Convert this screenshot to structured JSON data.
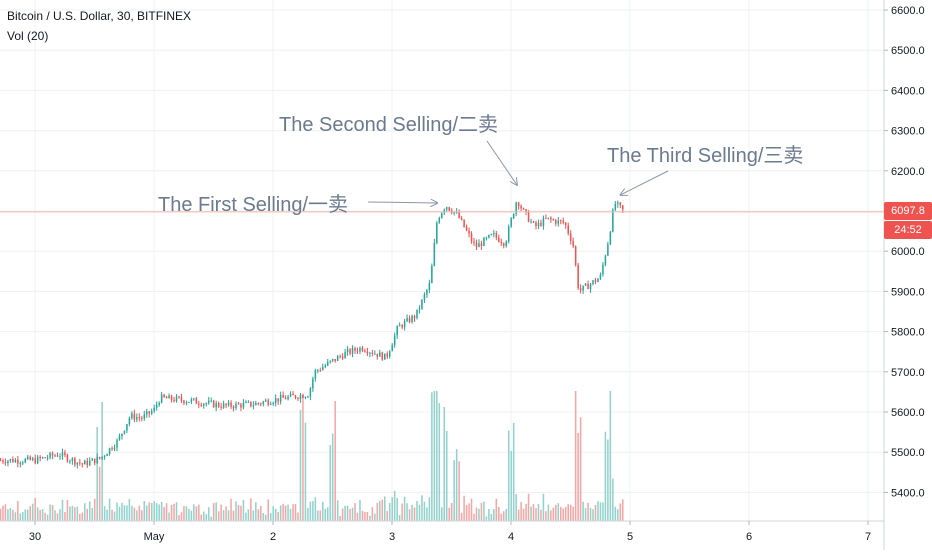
{
  "header": {
    "title": "Bitcoin / U.S. Dollar, 30, BITFINEX",
    "volume_label": "Vol (20)"
  },
  "price_scale": {
    "last_price": "6097.8",
    "countdown": "24:52"
  },
  "colors": {
    "up": "#26a69a",
    "down": "#ef5350",
    "volume_up": "#93d2cc",
    "volume_down": "#f4a6a4",
    "grid": "#eef0f3",
    "annotation_text": "#6b7a8f",
    "price_line": "#f5b7a8"
  },
  "chart_data": {
    "type": "candlestick",
    "symbol": "Bitcoin / U.S. Dollar",
    "interval": "30",
    "exchange": "BITFINEX",
    "indicator": "Vol (20)",
    "y_ticks": [
      "6600.0",
      "6500.0",
      "6400.0",
      "6300.0",
      "6200.0",
      "6100.0",
      "6000.0",
      "5900.0",
      "5800.0",
      "5700.0",
      "5600.0",
      "5500.0",
      "5400.0"
    ],
    "y_tick_values": [
      6600,
      6500,
      6400,
      6300,
      6200,
      6100,
      6000,
      5900,
      5800,
      5700,
      5600,
      5500,
      5400
    ],
    "ylim": [
      5340,
      6660
    ],
    "x_ticks": [
      {
        "label": "30",
        "day": 0
      },
      {
        "label": "May",
        "day": 1
      },
      {
        "label": "2",
        "day": 2
      },
      {
        "label": "3",
        "day": 3
      },
      {
        "label": "4",
        "day": 4
      },
      {
        "label": "5",
        "day": 5
      },
      {
        "label": "6",
        "day": 6
      },
      {
        "label": "7",
        "day": 7
      }
    ],
    "last_price": 6097.8,
    "series": [
      {
        "day": 0.0,
        "close": 5480
      },
      {
        "day": 0.2,
        "close": 5495
      },
      {
        "day": 0.4,
        "close": 5470
      },
      {
        "day": 0.55,
        "close": 5485
      },
      {
        "day": 0.7,
        "close": 5530
      },
      {
        "day": 0.8,
        "close": 5590
      },
      {
        "day": 0.9,
        "close": 5585
      },
      {
        "day": 1.0,
        "close": 5605
      },
      {
        "day": 1.05,
        "close": 5635
      },
      {
        "day": 1.3,
        "close": 5628
      },
      {
        "day": 1.6,
        "close": 5615
      },
      {
        "day": 1.85,
        "close": 5620
      },
      {
        "day": 2.0,
        "close": 5630
      },
      {
        "day": 2.3,
        "close": 5645
      },
      {
        "day": 2.35,
        "close": 5700
      },
      {
        "day": 2.6,
        "close": 5745
      },
      {
        "day": 2.75,
        "close": 5760
      },
      {
        "day": 2.95,
        "close": 5735
      },
      {
        "day": 3.05,
        "close": 5810
      },
      {
        "day": 3.2,
        "close": 5840
      },
      {
        "day": 3.32,
        "close": 5920
      },
      {
        "day": 3.38,
        "close": 6080
      },
      {
        "day": 3.45,
        "close": 6115
      },
      {
        "day": 3.55,
        "close": 6090
      },
      {
        "day": 3.7,
        "close": 6010
      },
      {
        "day": 3.85,
        "close": 6040
      },
      {
        "day": 3.95,
        "close": 6020
      },
      {
        "day": 4.05,
        "close": 6130
      },
      {
        "day": 4.1,
        "close": 6100
      },
      {
        "day": 4.2,
        "close": 6060
      },
      {
        "day": 4.3,
        "close": 6080
      },
      {
        "day": 4.45,
        "close": 6070
      },
      {
        "day": 4.52,
        "close": 6020
      },
      {
        "day": 4.57,
        "close": 5900
      },
      {
        "day": 4.65,
        "close": 5915
      },
      {
        "day": 4.75,
        "close": 5935
      },
      {
        "day": 4.82,
        "close": 6030
      },
      {
        "day": 4.87,
        "close": 6120
      },
      {
        "day": 4.95,
        "close": 6097.8
      }
    ],
    "annotations": [
      {
        "text": "The First Selling/一卖",
        "target_day": 3.38,
        "target_price": 6120
      },
      {
        "text": "The Second Selling/二卖",
        "target_day": 4.05,
        "target_price": 6165
      },
      {
        "text": "The Third Selling/三卖",
        "target_day": 4.92,
        "target_price": 6140
      }
    ]
  }
}
